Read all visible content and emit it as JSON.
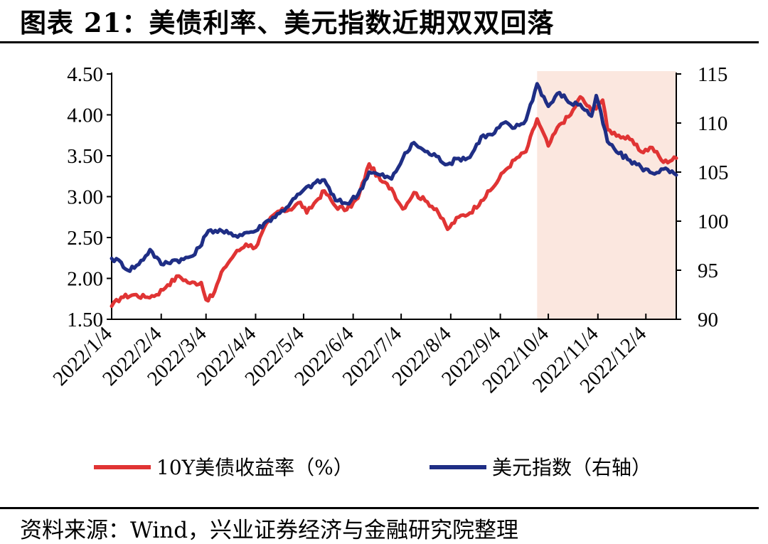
{
  "title": "图表 21：美债利率、美元指数近期双双回落",
  "source": "资料来源：Wind，兴业证券经济与金融研究院整理",
  "colors": {
    "yield": "#e03434",
    "dxy": "#1f2e85",
    "shade": "#fbe7df"
  },
  "chart_data": {
    "type": "line",
    "x_axis": {
      "tick_labels": [
        "2022/1/4",
        "2022/2/4",
        "2022/3/4",
        "2022/4/4",
        "2022/5/4",
        "2022/6/4",
        "2022/7/4",
        "2022/8/4",
        "2022/9/4",
        "2022/10/4",
        "2022/11/4",
        "2022/12/4"
      ]
    },
    "y_left": {
      "range": [
        1.5,
        4.5
      ],
      "tick_labels": [
        "4.50",
        "4.00",
        "3.50",
        "3.00",
        "2.50",
        "2.00",
        "1.50"
      ]
    },
    "y_right": {
      "range": [
        90,
        115
      ],
      "tick_labels": [
        "115",
        "110",
        "105",
        "100",
        "95",
        "90"
      ]
    },
    "shaded_region": {
      "from": "2022/9/27",
      "to": "2022/12/23"
    },
    "legend": {
      "placement": "bottom"
    },
    "series": [
      {
        "name": "10Y美债收益率（%）",
        "axis": "left",
        "color": "#e03434",
        "points": [
          [
            "2022/1/4",
            1.66
          ],
          [
            "2022/1/10",
            1.77
          ],
          [
            "2022/1/18",
            1.8
          ],
          [
            "2022/1/25",
            1.77
          ],
          [
            "2022/2/1",
            1.8
          ],
          [
            "2022/2/8",
            1.92
          ],
          [
            "2022/2/15",
            2.03
          ],
          [
            "2022/2/22",
            1.94
          ],
          [
            "2022/3/1",
            1.95
          ],
          [
            "2022/3/4",
            1.74
          ],
          [
            "2022/3/8",
            1.78
          ],
          [
            "2022/3/15",
            2.12
          ],
          [
            "2022/3/22",
            2.3
          ],
          [
            "2022/3/29",
            2.42
          ],
          [
            "2022/4/4",
            2.38
          ],
          [
            "2022/4/12",
            2.7
          ],
          [
            "2022/4/18",
            2.82
          ],
          [
            "2022/4/25",
            2.84
          ],
          [
            "2022/5/2",
            2.93
          ],
          [
            "2022/5/6",
            2.8
          ],
          [
            "2022/5/12",
            2.95
          ],
          [
            "2022/5/17",
            3.07
          ],
          [
            "2022/5/24",
            2.88
          ],
          [
            "2022/5/31",
            2.84
          ],
          [
            "2022/6/7",
            2.98
          ],
          [
            "2022/6/14",
            3.4
          ],
          [
            "2022/6/21",
            3.2
          ],
          [
            "2022/6/28",
            3.1
          ],
          [
            "2022/7/5",
            2.85
          ],
          [
            "2022/7/12",
            3.05
          ],
          [
            "2022/7/19",
            2.95
          ],
          [
            "2022/7/26",
            2.85
          ],
          [
            "2022/8/2",
            2.6
          ],
          [
            "2022/8/9",
            2.75
          ],
          [
            "2022/8/16",
            2.8
          ],
          [
            "2022/8/23",
            2.95
          ],
          [
            "2022/8/30",
            3.1
          ],
          [
            "2022/9/6",
            3.3
          ],
          [
            "2022/9/13",
            3.45
          ],
          [
            "2022/9/20",
            3.55
          ],
          [
            "2022/9/27",
            3.95
          ],
          [
            "2022/10/4",
            3.62
          ],
          [
            "2022/10/11",
            3.88
          ],
          [
            "2022/10/18",
            4.0
          ],
          [
            "2022/10/24",
            4.22
          ],
          [
            "2022/10/31",
            4.05
          ],
          [
            "2022/11/7",
            4.18
          ],
          [
            "2022/11/10",
            3.82
          ],
          [
            "2022/11/17",
            3.75
          ],
          [
            "2022/11/24",
            3.7
          ],
          [
            "2022/12/1",
            3.55
          ],
          [
            "2022/12/8",
            3.6
          ],
          [
            "2022/12/15",
            3.42
          ],
          [
            "2022/12/23",
            3.47
          ]
        ]
      },
      {
        "name": "美元指数（右轴）",
        "axis": "right",
        "color": "#1f2e85",
        "points": [
          [
            "2022/1/4",
            96.2
          ],
          [
            "2022/1/10",
            95.8
          ],
          [
            "2022/1/14",
            95.0
          ],
          [
            "2022/1/21",
            95.6
          ],
          [
            "2022/1/28",
            97.1
          ],
          [
            "2022/2/4",
            95.6
          ],
          [
            "2022/2/11",
            96.0
          ],
          [
            "2022/2/18",
            96.1
          ],
          [
            "2022/2/25",
            96.6
          ],
          [
            "2022/3/4",
            98.6
          ],
          [
            "2022/3/7",
            99.1
          ],
          [
            "2022/3/14",
            99.0
          ],
          [
            "2022/3/21",
            98.5
          ],
          [
            "2022/3/28",
            98.8
          ],
          [
            "2022/4/4",
            99.0
          ],
          [
            "2022/4/12",
            100.1
          ],
          [
            "2022/4/19",
            100.8
          ],
          [
            "2022/4/26",
            101.9
          ],
          [
            "2022/5/3",
            103.0
          ],
          [
            "2022/5/10",
            103.8
          ],
          [
            "2022/5/17",
            104.2
          ],
          [
            "2022/5/24",
            102.1
          ],
          [
            "2022/5/31",
            101.8
          ],
          [
            "2022/6/7",
            102.7
          ],
          [
            "2022/6/14",
            105.0
          ],
          [
            "2022/6/21",
            104.7
          ],
          [
            "2022/6/28",
            104.3
          ],
          [
            "2022/7/5",
            106.4
          ],
          [
            "2022/7/12",
            108.0
          ],
          [
            "2022/7/19",
            107.1
          ],
          [
            "2022/7/26",
            106.6
          ],
          [
            "2022/8/2",
            105.8
          ],
          [
            "2022/8/9",
            106.4
          ],
          [
            "2022/8/16",
            106.5
          ],
          [
            "2022/8/23",
            108.6
          ],
          [
            "2022/8/30",
            108.8
          ],
          [
            "2022/9/6",
            110.0
          ],
          [
            "2022/9/13",
            109.5
          ],
          [
            "2022/9/20",
            110.3
          ],
          [
            "2022/9/27",
            114.0
          ],
          [
            "2022/10/4",
            111.7
          ],
          [
            "2022/10/11",
            113.1
          ],
          [
            "2022/10/18",
            112.0
          ],
          [
            "2022/10/24",
            111.9
          ],
          [
            "2022/10/31",
            110.7
          ],
          [
            "2022/11/3",
            112.8
          ],
          [
            "2022/11/10",
            108.1
          ],
          [
            "2022/11/17",
            106.9
          ],
          [
            "2022/11/24",
            106.2
          ],
          [
            "2022/12/1",
            105.5
          ],
          [
            "2022/12/8",
            104.9
          ],
          [
            "2022/12/15",
            105.3
          ],
          [
            "2022/12/23",
            104.7
          ]
        ]
      }
    ]
  }
}
